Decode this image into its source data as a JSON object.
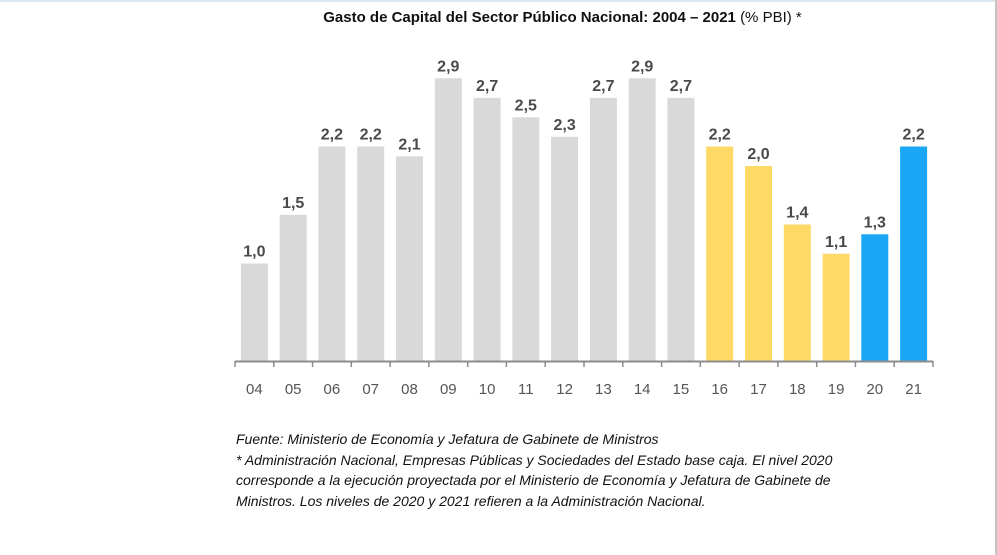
{
  "chart_data": {
    "type": "bar",
    "title": "Gasto de Capital del Sector Público Nacional: 2004 – 2021",
    "title_suffix": "(% PBI) *",
    "xlabel": "",
    "ylabel": "",
    "ylim": [
      0,
      3.0
    ],
    "grid": false,
    "legend": "none",
    "categories": [
      "04",
      "05",
      "06",
      "07",
      "08",
      "09",
      "10",
      "11",
      "12",
      "13",
      "14",
      "15",
      "16",
      "17",
      "18",
      "19",
      "20",
      "21"
    ],
    "values": [
      1.0,
      1.5,
      2.2,
      2.2,
      2.1,
      2.9,
      2.7,
      2.5,
      2.3,
      2.7,
      2.9,
      2.7,
      2.2,
      2.0,
      1.4,
      1.1,
      1.3,
      2.2
    ],
    "value_labels": [
      "1,0",
      "1,5",
      "2,2",
      "2,2",
      "2,1",
      "2,9",
      "2,7",
      "2,5",
      "2,3",
      "2,7",
      "2,9",
      "2,7",
      "2,2",
      "2,0",
      "1,4",
      "1,1",
      "1,3",
      "2,2"
    ],
    "bar_colors": [
      "#d9d9d9",
      "#d9d9d9",
      "#d9d9d9",
      "#d9d9d9",
      "#d9d9d9",
      "#d9d9d9",
      "#d9d9d9",
      "#d9d9d9",
      "#d9d9d9",
      "#d9d9d9",
      "#d9d9d9",
      "#d9d9d9",
      "#ffd966",
      "#ffd966",
      "#ffd966",
      "#ffd966",
      "#1aa7f5",
      "#1aa7f5"
    ]
  },
  "notes": {
    "source": "Fuente: Ministerio de Economía y Jefatura de Gabinete de Ministros",
    "line1": "* Administración Nacional, Empresas Públicas y Sociedades del Estado base caja. El nivel 2020",
    "line2": "corresponde a la ejecución proyectada por el Ministerio de Economía y Jefatura de Gabinete de",
    "line3": "Ministros. Los niveles de 2020 y 2021 refieren a la Administración Nacional."
  },
  "colors": {
    "axis": "#8c8c8c",
    "label": "#4a4a4a"
  }
}
